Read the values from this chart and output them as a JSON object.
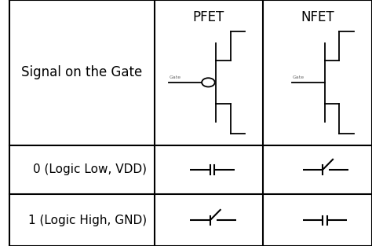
{
  "col_boundaries": [
    0.0,
    0.4,
    0.7,
    1.0
  ],
  "row_boundaries": [
    0.0,
    0.21,
    0.41,
    1.0
  ],
  "headers": [
    "Signal on the Gate",
    "PFET",
    "NFET"
  ],
  "row_labels": [
    "0 (Logic Low, VDD)",
    "1 (Logic High, GND)"
  ],
  "header_fontsize": 12,
  "label_fontsize": 11,
  "bg_color": "#ffffff",
  "line_color": "#000000",
  "text_color": "#000000"
}
